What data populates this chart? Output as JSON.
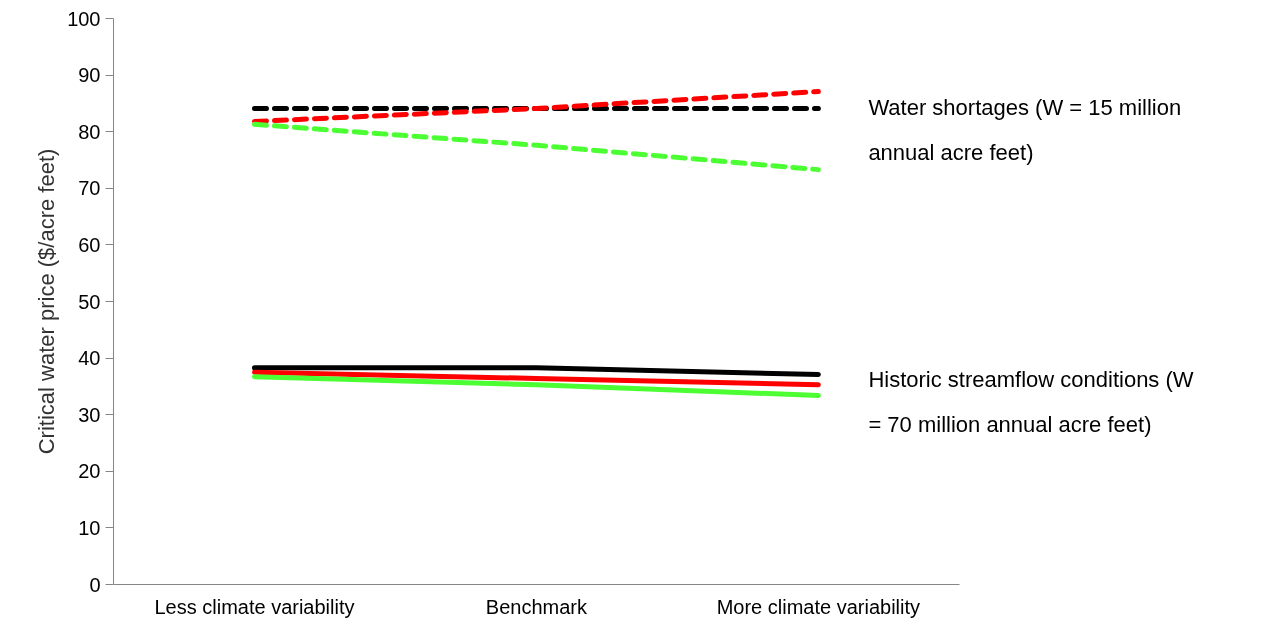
{
  "chart_data": {
    "type": "line",
    "ylabel": "Critical water price ($/acre feet)",
    "categories": [
      "Less climate variability",
      "Benchmark",
      "More climate variability"
    ],
    "ylim": [
      0,
      100
    ],
    "yticks": [
      0,
      10,
      20,
      30,
      40,
      50,
      60,
      70,
      80,
      90,
      100
    ],
    "grid": false,
    "marker": "none",
    "series": [
      {
        "color": "#000000",
        "line_style": "dashed",
        "values": [
          84.1,
          84.1,
          84.1
        ]
      },
      {
        "color": "#ff0000",
        "line_style": "dashed",
        "values": [
          81.8,
          84.1,
          87.1
        ]
      },
      {
        "color": "#4cff33",
        "line_style": "dashed",
        "values": [
          81.3,
          77.6,
          73.3
        ]
      },
      {
        "color": "#000000",
        "line_style": "solid",
        "values": [
          38.3,
          38.3,
          37.1
        ]
      },
      {
        "color": "#ff0000",
        "line_style": "solid",
        "values": [
          37.5,
          36.4,
          35.3
        ]
      },
      {
        "color": "#4cff33",
        "line_style": "solid",
        "values": [
          36.7,
          35.3,
          33.4
        ]
      }
    ],
    "annotations": [
      {
        "text": "Water shortages (W = 15 million annual acre feet)",
        "x": "More climate variability",
        "y": 84
      },
      {
        "text": "Historic streamflow conditions (W = 70 million annual acre feet)",
        "x": "More climate variability",
        "y": 36
      }
    ]
  }
}
